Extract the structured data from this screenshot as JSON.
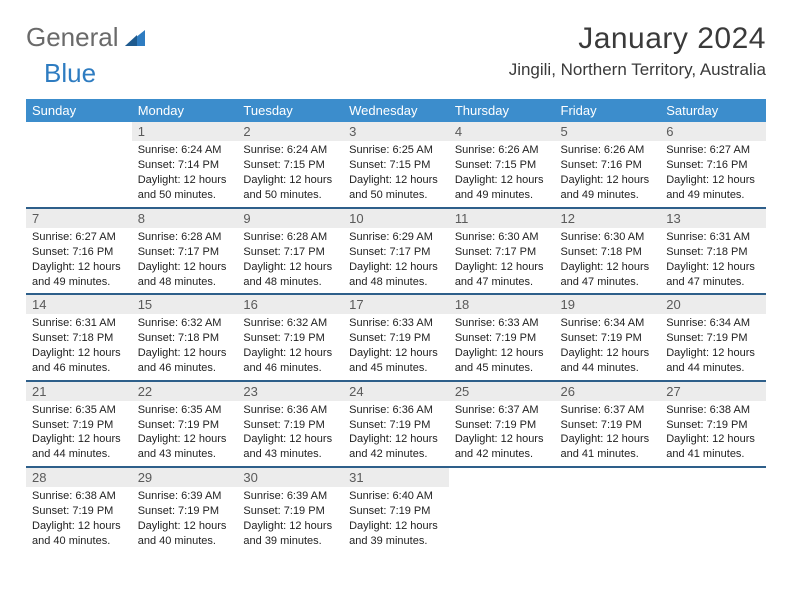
{
  "brand": {
    "part1": "General",
    "part2": "Blue"
  },
  "title": "January 2024",
  "location": "Jingili, Northern Territory, Australia",
  "colors": {
    "header_bg": "#3c8dcc",
    "header_fg": "#ffffff",
    "daynum_bg": "#ececec",
    "row_border": "#2e5f8a",
    "brand_accent": "#2e7cc1"
  },
  "weekdays": [
    "Sunday",
    "Monday",
    "Tuesday",
    "Wednesday",
    "Thursday",
    "Friday",
    "Saturday"
  ],
  "weeks": [
    [
      null,
      {
        "n": "1",
        "sr": "6:24 AM",
        "ss": "7:14 PM",
        "dl": "12 hours and 50 minutes."
      },
      {
        "n": "2",
        "sr": "6:24 AM",
        "ss": "7:15 PM",
        "dl": "12 hours and 50 minutes."
      },
      {
        "n": "3",
        "sr": "6:25 AM",
        "ss": "7:15 PM",
        "dl": "12 hours and 50 minutes."
      },
      {
        "n": "4",
        "sr": "6:26 AM",
        "ss": "7:15 PM",
        "dl": "12 hours and 49 minutes."
      },
      {
        "n": "5",
        "sr": "6:26 AM",
        "ss": "7:16 PM",
        "dl": "12 hours and 49 minutes."
      },
      {
        "n": "6",
        "sr": "6:27 AM",
        "ss": "7:16 PM",
        "dl": "12 hours and 49 minutes."
      }
    ],
    [
      {
        "n": "7",
        "sr": "6:27 AM",
        "ss": "7:16 PM",
        "dl": "12 hours and 49 minutes."
      },
      {
        "n": "8",
        "sr": "6:28 AM",
        "ss": "7:17 PM",
        "dl": "12 hours and 48 minutes."
      },
      {
        "n": "9",
        "sr": "6:28 AM",
        "ss": "7:17 PM",
        "dl": "12 hours and 48 minutes."
      },
      {
        "n": "10",
        "sr": "6:29 AM",
        "ss": "7:17 PM",
        "dl": "12 hours and 48 minutes."
      },
      {
        "n": "11",
        "sr": "6:30 AM",
        "ss": "7:17 PM",
        "dl": "12 hours and 47 minutes."
      },
      {
        "n": "12",
        "sr": "6:30 AM",
        "ss": "7:18 PM",
        "dl": "12 hours and 47 minutes."
      },
      {
        "n": "13",
        "sr": "6:31 AM",
        "ss": "7:18 PM",
        "dl": "12 hours and 47 minutes."
      }
    ],
    [
      {
        "n": "14",
        "sr": "6:31 AM",
        "ss": "7:18 PM",
        "dl": "12 hours and 46 minutes."
      },
      {
        "n": "15",
        "sr": "6:32 AM",
        "ss": "7:18 PM",
        "dl": "12 hours and 46 minutes."
      },
      {
        "n": "16",
        "sr": "6:32 AM",
        "ss": "7:19 PM",
        "dl": "12 hours and 46 minutes."
      },
      {
        "n": "17",
        "sr": "6:33 AM",
        "ss": "7:19 PM",
        "dl": "12 hours and 45 minutes."
      },
      {
        "n": "18",
        "sr": "6:33 AM",
        "ss": "7:19 PM",
        "dl": "12 hours and 45 minutes."
      },
      {
        "n": "19",
        "sr": "6:34 AM",
        "ss": "7:19 PM",
        "dl": "12 hours and 44 minutes."
      },
      {
        "n": "20",
        "sr": "6:34 AM",
        "ss": "7:19 PM",
        "dl": "12 hours and 44 minutes."
      }
    ],
    [
      {
        "n": "21",
        "sr": "6:35 AM",
        "ss": "7:19 PM",
        "dl": "12 hours and 44 minutes."
      },
      {
        "n": "22",
        "sr": "6:35 AM",
        "ss": "7:19 PM",
        "dl": "12 hours and 43 minutes."
      },
      {
        "n": "23",
        "sr": "6:36 AM",
        "ss": "7:19 PM",
        "dl": "12 hours and 43 minutes."
      },
      {
        "n": "24",
        "sr": "6:36 AM",
        "ss": "7:19 PM",
        "dl": "12 hours and 42 minutes."
      },
      {
        "n": "25",
        "sr": "6:37 AM",
        "ss": "7:19 PM",
        "dl": "12 hours and 42 minutes."
      },
      {
        "n": "26",
        "sr": "6:37 AM",
        "ss": "7:19 PM",
        "dl": "12 hours and 41 minutes."
      },
      {
        "n": "27",
        "sr": "6:38 AM",
        "ss": "7:19 PM",
        "dl": "12 hours and 41 minutes."
      }
    ],
    [
      {
        "n": "28",
        "sr": "6:38 AM",
        "ss": "7:19 PM",
        "dl": "12 hours and 40 minutes."
      },
      {
        "n": "29",
        "sr": "6:39 AM",
        "ss": "7:19 PM",
        "dl": "12 hours and 40 minutes."
      },
      {
        "n": "30",
        "sr": "6:39 AM",
        "ss": "7:19 PM",
        "dl": "12 hours and 39 minutes."
      },
      {
        "n": "31",
        "sr": "6:40 AM",
        "ss": "7:19 PM",
        "dl": "12 hours and 39 minutes."
      },
      null,
      null,
      null
    ]
  ],
  "labels": {
    "sunrise": "Sunrise:",
    "sunset": "Sunset:",
    "daylight": "Daylight:"
  }
}
